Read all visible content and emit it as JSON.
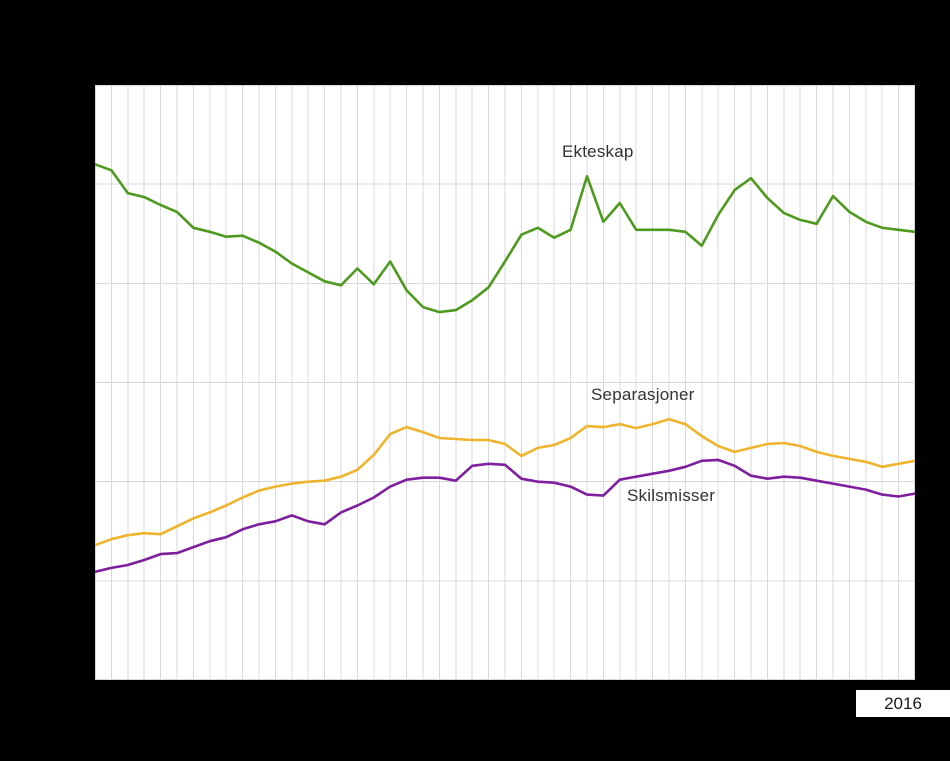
{
  "colors": {
    "background": "#000000",
    "plot_background": "#ffffff",
    "grid": "#d9d9d9",
    "text": "#333333",
    "tick_box_background": "#ffffff",
    "tick_text": "#1a1a1a"
  },
  "labels": {
    "ekteskap": "Ekteskap",
    "separasjoner": "Separasjoner",
    "skilsmisser": "Skilsmisser"
  },
  "x_tick": {
    "label": "2016"
  },
  "chart_data": {
    "type": "line",
    "title": "",
    "xlabel": "",
    "ylabel": "",
    "grid": true,
    "legend_position": "inline-annotations",
    "ylim": [
      0,
      30000
    ],
    "visible_x_tick_labels": [
      "2016"
    ],
    "x": [
      1966,
      1967,
      1968,
      1969,
      1970,
      1971,
      1972,
      1973,
      1974,
      1975,
      1976,
      1977,
      1978,
      1979,
      1980,
      1981,
      1982,
      1983,
      1984,
      1985,
      1986,
      1987,
      1988,
      1989,
      1990,
      1991,
      1992,
      1993,
      1994,
      1995,
      1996,
      1997,
      1998,
      1999,
      2000,
      2001,
      2002,
      2003,
      2004,
      2005,
      2006,
      2007,
      2008,
      2009,
      2010,
      2011,
      2012,
      2013,
      2014,
      2015,
      2016
    ],
    "series": [
      {
        "name": "Ekteskap",
        "color": "#4e9a1f",
        "values": [
          26000,
          25700,
          24550,
          24350,
          23950,
          23600,
          22800,
          22600,
          22350,
          22400,
          22050,
          21600,
          21000,
          20550,
          20100,
          19900,
          20750,
          19950,
          21100,
          19650,
          18800,
          18550,
          18650,
          19150,
          19800,
          21100,
          22450,
          22800,
          22300,
          22700,
          25400,
          23100,
          24050,
          22700,
          22700,
          22700,
          22600,
          21900,
          23450,
          24700,
          25300,
          24300,
          23550,
          23200,
          23000,
          24400,
          23600,
          23100,
          22800,
          22700,
          22600
        ]
      },
      {
        "name": "Separasjoner",
        "color": "#f0b32e",
        "values": [
          6800,
          7100,
          7300,
          7400,
          7350,
          7750,
          8150,
          8450,
          8800,
          9200,
          9550,
          9750,
          9900,
          10000,
          10050,
          10250,
          10600,
          11350,
          12400,
          12750,
          12500,
          12200,
          12150,
          12100,
          12100,
          11900,
          11300,
          11700,
          11850,
          12200,
          12800,
          12750,
          12900,
          12700,
          12900,
          13150,
          12900,
          12300,
          11800,
          11500,
          11700,
          11900,
          11950,
          11800,
          11500,
          11300,
          11150,
          11000,
          10750,
          10900,
          11050
        ]
      },
      {
        "name": "Skilsmisser",
        "color": "#7e1f9e",
        "values": [
          5450,
          5650,
          5800,
          6050,
          6350,
          6400,
          6700,
          7000,
          7200,
          7600,
          7850,
          8000,
          8300,
          8000,
          7850,
          8450,
          8800,
          9200,
          9750,
          10100,
          10200,
          10200,
          10050,
          10800,
          10900,
          10850,
          10150,
          10000,
          9950,
          9750,
          9350,
          9300,
          10100,
          10250,
          10400,
          10550,
          10750,
          11050,
          11100,
          10800,
          10300,
          10150,
          10250,
          10200,
          10050,
          9900,
          9750,
          9600,
          9350,
          9250,
          9400
        ]
      }
    ]
  }
}
